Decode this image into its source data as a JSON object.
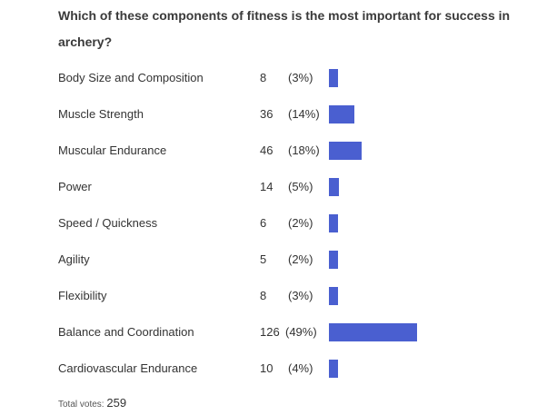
{
  "question": "Which of these components of fitness is the most important for success in archery?",
  "total_label": "Total votes:",
  "total_votes": "259",
  "colors": {
    "bar": "#4a5fd0",
    "text": "#333333"
  },
  "chart_data": {
    "type": "bar",
    "orientation": "horizontal",
    "title": "Which of these components of fitness is the most important for success in archery?",
    "categories": [
      "Body Size and Composition",
      "Muscle Strength",
      "Muscular Endurance",
      "Power",
      "Speed / Quickness",
      "Agility",
      "Flexibility",
      "Balance and Coordination",
      "Cardiovascular Endurance"
    ],
    "values": [
      8,
      36,
      46,
      14,
      6,
      5,
      8,
      126,
      10
    ],
    "percent_labels": [
      "(3%)",
      "(14%)",
      "(18%)",
      "(5%)",
      "(2%)",
      "(2%)",
      "(3%)",
      "(49%)",
      "(4%)"
    ],
    "total": 259
  }
}
